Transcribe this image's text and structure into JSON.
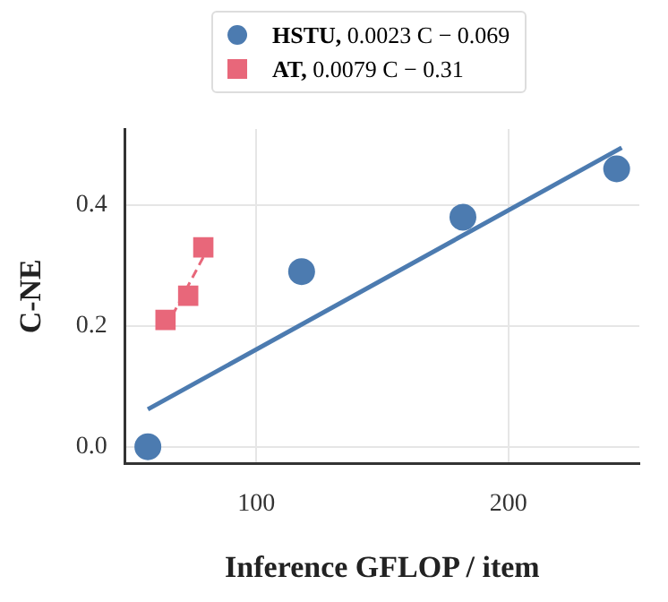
{
  "chart_data": {
    "type": "scatter",
    "xlabel": "Inference GFLOP / item",
    "ylabel": "C-NE",
    "xlim": [
      48,
      252
    ],
    "xticks": [
      100,
      200
    ],
    "ylim": [
      -0.028,
      0.526
    ],
    "yticks": [
      {
        "value": 0,
        "label": "0.0"
      },
      0.2,
      0.4
    ],
    "series": [
      {
        "name": "HSTU, 0.0023 C − 0.069",
        "color": "#4c7bb0",
        "marker": "circle",
        "x": [
          57,
          118,
          182,
          243
        ],
        "values": [
          0.0,
          0.29,
          0.38,
          0.46
        ]
      },
      {
        "name": "AT, 0.0079 C − 0.31",
        "color": "#e8677a",
        "marker": "square",
        "x": [
          64,
          73,
          79
        ],
        "values": [
          0.21,
          0.25,
          0.33
        ]
      },
      {
        "type": "line",
        "color": "#4c7bb0",
        "marker": "none",
        "x": [
          57,
          245
        ],
        "values": [
          0.062,
          0.495
        ]
      },
      {
        "type": "line",
        "color": "#e8677a",
        "marker": "none",
        "line_style": "dashed",
        "x": [
          64,
          79
        ],
        "values": [
          0.196,
          0.314
        ]
      }
    ],
    "grid": true,
    "legend": "top"
  }
}
